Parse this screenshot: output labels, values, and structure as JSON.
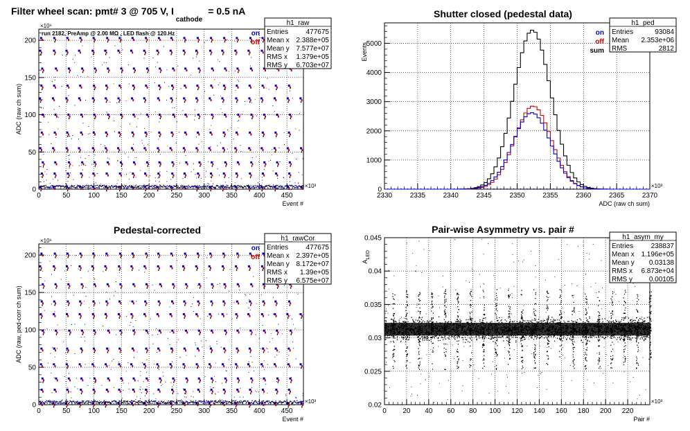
{
  "chart_data": [
    {
      "type": "scatter",
      "title_left": "Filter wheel scan: pmt#   3 @   705 V, I",
      "title_sub": "cathode",
      "title_right": "= 0.5 nA",
      "subtitle": "run 2182, PreAmp @ 2.00 MΩ , LED flash @  120.Hz",
      "xlabel": "Event #",
      "ylabel": "ADC (raw ch sum)",
      "x_exp": "×10³",
      "y_exp": "×10⁶",
      "xlim": [
        0,
        480
      ],
      "ylim": [
        0,
        215
      ],
      "x_ticks": [
        "0",
        "50",
        "100",
        "150",
        "200",
        "250",
        "300",
        "350",
        "400",
        "450"
      ],
      "y_ticks": [
        "0",
        "50",
        "100",
        "150",
        "200"
      ],
      "legend": [
        {
          "label": "on",
          "color": "#0000cc"
        },
        {
          "label": "off",
          "color": "#cc0000"
        }
      ],
      "levels": [
        3,
        21,
        36,
        55,
        76,
        100,
        122,
        139,
        162,
        186,
        203
      ],
      "stats": {
        "name": "h1_raw",
        "rows": [
          [
            "Entries",
            "477675"
          ],
          [
            "Mean x",
            "2.388e+05"
          ],
          [
            "Mean y",
            "7.577e+07"
          ],
          [
            "RMS x",
            "1.379e+05"
          ],
          [
            "RMS y",
            "6.703e+07"
          ]
        ]
      }
    },
    {
      "type": "line",
      "title": "Shutter closed (pedestal data)",
      "xlabel": "ADC (raw ch sum)",
      "ylabel": "Events",
      "x_exp": "×10³",
      "xlim": [
        2330,
        2370
      ],
      "ylim": [
        0,
        5700
      ],
      "x_ticks": [
        "2330",
        "2335",
        "2340",
        "2345",
        "2350",
        "2355",
        "2360",
        "2365",
        "2370"
      ],
      "y_ticks": [
        "0",
        "1000",
        "2000",
        "3000",
        "4000",
        "5000"
      ],
      "legend": [
        {
          "label": "on",
          "color": "#0000cc"
        },
        {
          "label": "off",
          "color": "#cc0000"
        },
        {
          "label": "sum",
          "color": "#000000"
        }
      ],
      "series": [
        {
          "name": "sum",
          "color": "#000000",
          "mean": 2352.3,
          "sigma": 2.8,
          "peak": 5450
        },
        {
          "name": "off",
          "color": "#cc0000",
          "mean": 2352.4,
          "sigma": 2.75,
          "peak": 2850
        },
        {
          "name": "on",
          "color": "#0000cc",
          "mean": 2352.2,
          "sigma": 2.85,
          "peak": 2620
        }
      ],
      "stats": {
        "name": "h1_ped",
        "rows": [
          [
            "Entries",
            "93084"
          ],
          [
            "Mean",
            "2.353e+06"
          ],
          [
            "RMS",
            "2812"
          ]
        ]
      }
    },
    {
      "type": "scatter",
      "title": "Pedestal-corrected",
      "xlabel": "Event #",
      "ylabel": "ADC (raw, ped-corr ch sum)",
      "x_exp": "×10³",
      "y_exp": "×10⁶",
      "xlim": [
        0,
        480
      ],
      "ylim": [
        0,
        215
      ],
      "x_ticks": [
        "0",
        "50",
        "100",
        "150",
        "200",
        "250",
        "300",
        "350",
        "400",
        "450"
      ],
      "y_ticks": [
        "0",
        "50",
        "100",
        "150",
        "200"
      ],
      "legend": [
        {
          "label": "on",
          "color": "#0000cc"
        },
        {
          "label": "off",
          "color": "#cc0000"
        }
      ],
      "levels": [
        2,
        20,
        35,
        54,
        75,
        99,
        121,
        138,
        161,
        185,
        202
      ],
      "stats": {
        "name": "h1_rawCor",
        "rows": [
          [
            "Entries",
            "477675"
          ],
          [
            "Mean x",
            "2.397e+05"
          ],
          [
            "Mean y",
            "8.172e+07"
          ],
          [
            "RMS x",
            "1.39e+05"
          ],
          [
            "RMS y",
            "6.575e+07"
          ]
        ]
      }
    },
    {
      "type": "scatter",
      "title": "Pair-wise Asymmetry vs. pair #",
      "xlabel": "Pair #",
      "ylabel": "A",
      "ylabel_sub": "LED",
      "x_exp": "×10³",
      "xlim": [
        0,
        240
      ],
      "ylim": [
        0.02,
        0.045
      ],
      "x_ticks": [
        "0",
        "20",
        "40",
        "60",
        "80",
        "100",
        "120",
        "140",
        "160",
        "180",
        "200",
        "220"
      ],
      "y_ticks": [
        "0.02",
        "0.025",
        "0.03",
        "0.035",
        "0.04",
        "0.045"
      ],
      "band_center": 0.0313,
      "band_halfwidth": 0.0012,
      "stats": {
        "name": "h1_asym_my",
        "rows": [
          [
            "Entries",
            "238837"
          ],
          [
            "Mean x",
            "1.196e+05"
          ],
          [
            "Mean y",
            "0.03138"
          ],
          [
            "RMS x",
            "6.873e+04"
          ],
          [
            "RMS y",
            "0.00105"
          ]
        ]
      }
    }
  ]
}
